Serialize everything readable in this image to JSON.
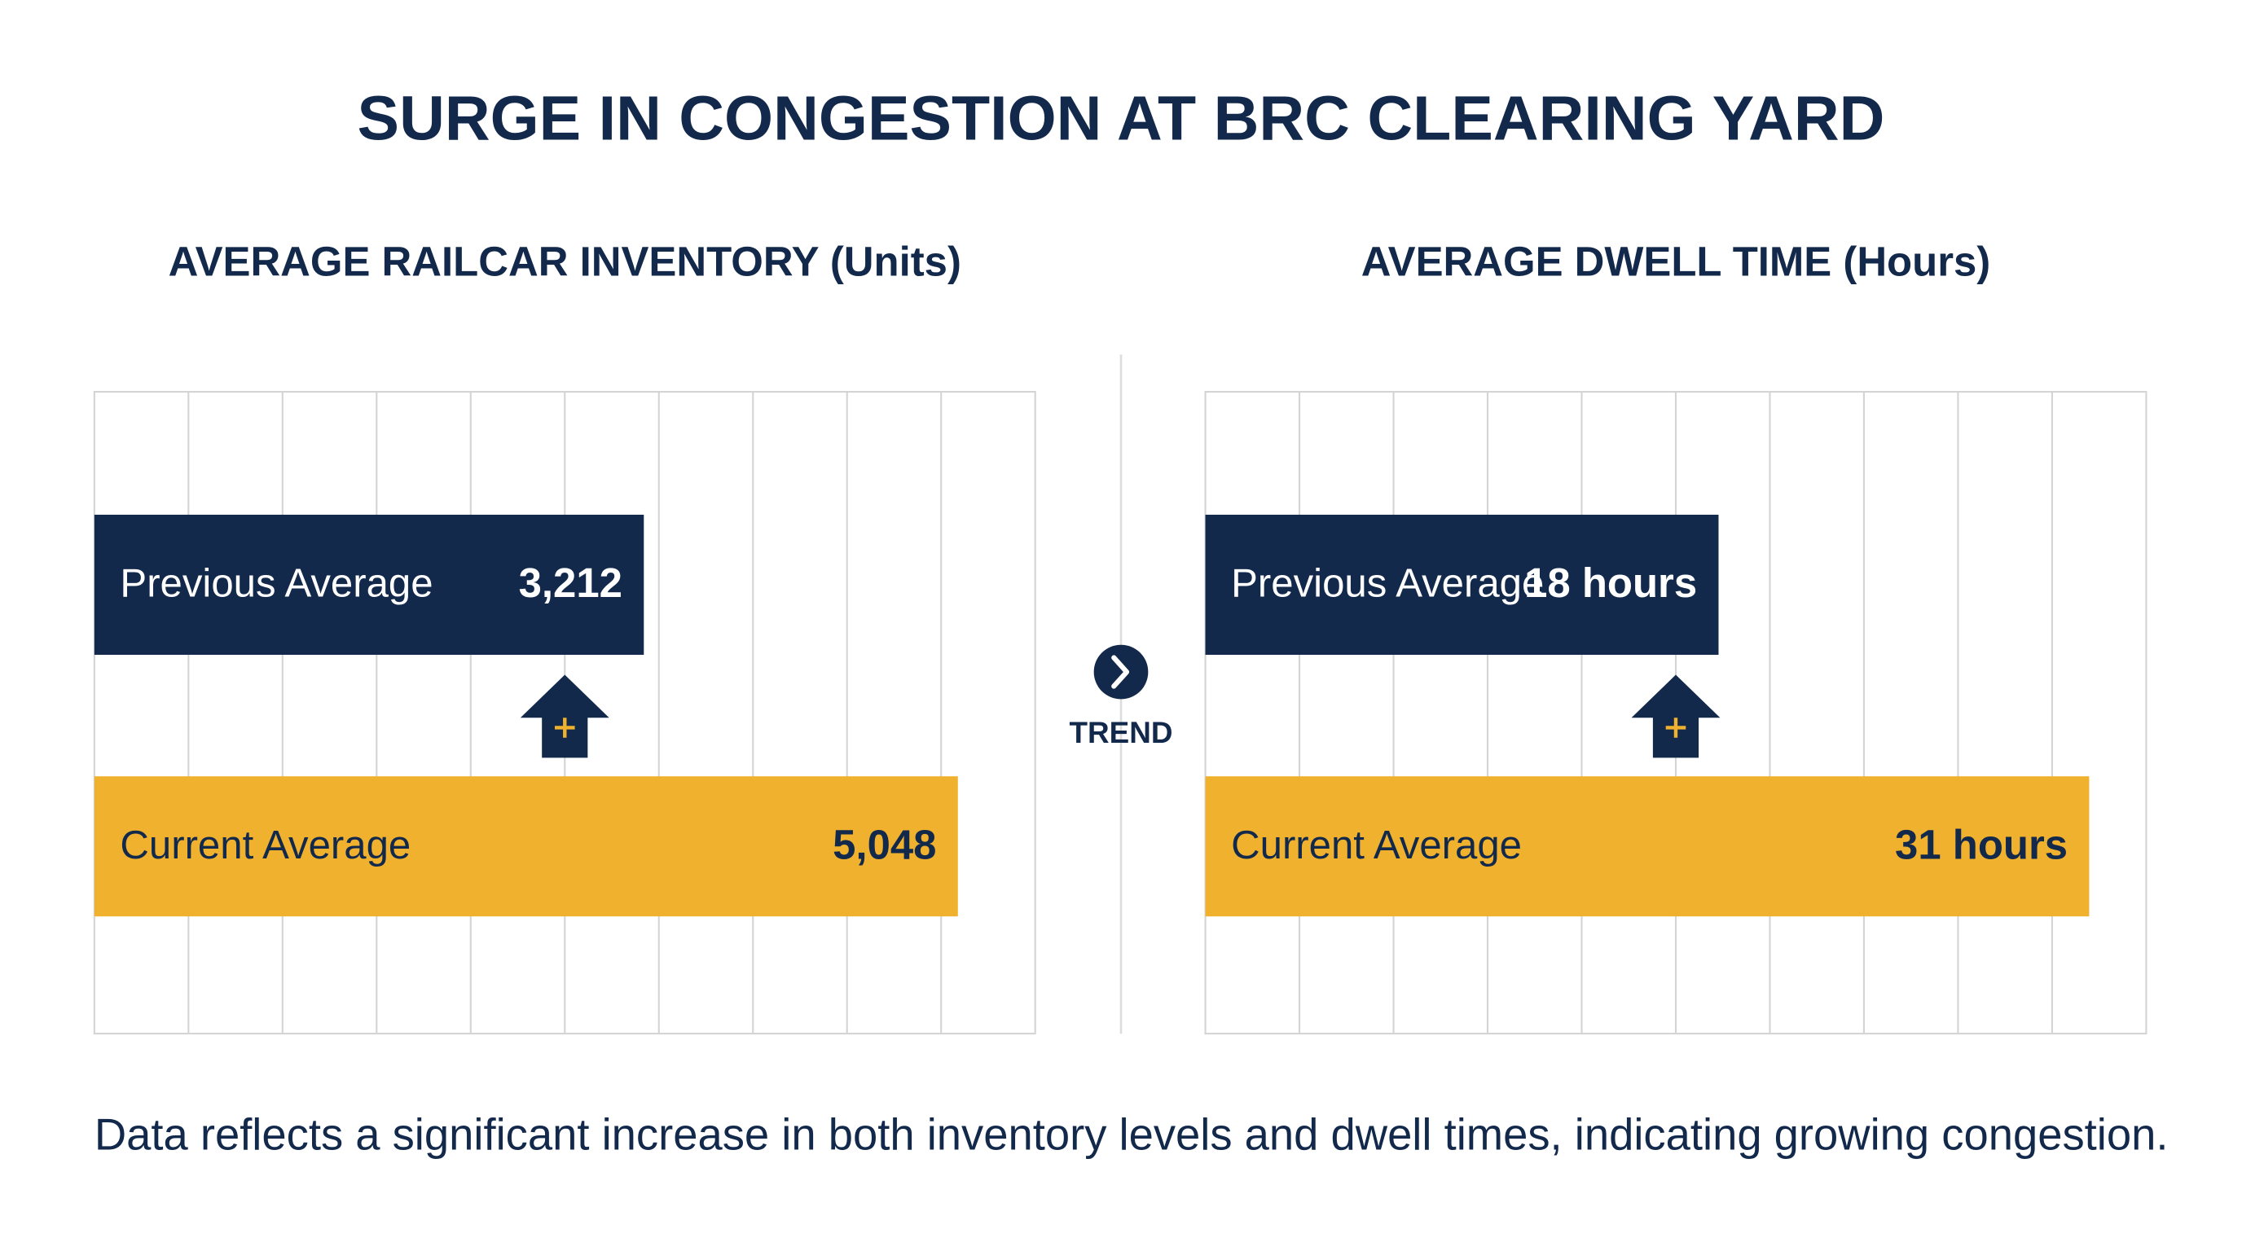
{
  "title": "SURGE IN CONGESTION AT BRC CLEARING YARD",
  "trend_label": "TREND",
  "footnote": "Data reflects a significant increase in both inventory levels and dwell times, indicating growing congestion.",
  "chart_data": [
    {
      "type": "bar",
      "orientation": "horizontal",
      "title": "AVERAGE RAILCAR INVENTORY (Units)",
      "categories": [
        "Previous Average",
        "Current Average"
      ],
      "values": [
        3212,
        5048
      ],
      "value_labels": [
        "3,212",
        "5,048"
      ],
      "colors": [
        "#13294b",
        "#f0b22e"
      ],
      "xlim": [
        0,
        5500
      ],
      "grid": true
    },
    {
      "type": "bar",
      "orientation": "horizontal",
      "title": "AVERAGE DWELL TIME (Hours)",
      "categories": [
        "Previous Average",
        "Current Average"
      ],
      "values": [
        18,
        31
      ],
      "value_labels": [
        "18 hours",
        "31 hours"
      ],
      "colors": [
        "#13294b",
        "#f0b22e"
      ],
      "xlim": [
        0,
        33
      ],
      "grid": true
    }
  ]
}
